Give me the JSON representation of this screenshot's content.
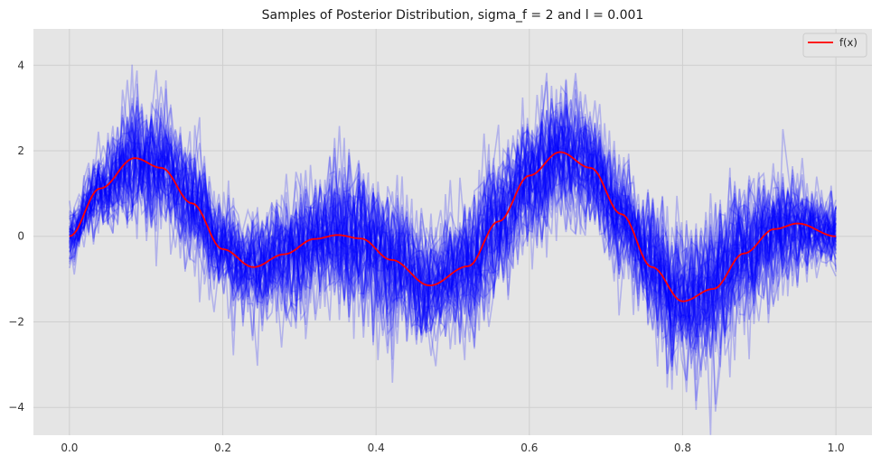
{
  "chart_data": {
    "type": "line",
    "title": "Samples of Posterior Distribution, sigma_f = 2 and l = 0.001",
    "xlabel": "",
    "ylabel": "",
    "xlim": [
      -0.047,
      1.047
    ],
    "ylim": [
      -4.65,
      4.85
    ],
    "xticks": [
      0.0,
      0.2,
      0.4,
      0.6,
      0.8,
      1.0
    ],
    "xtick_labels": [
      "0.0",
      "0.2",
      "0.4",
      "0.6",
      "0.8",
      "1.0"
    ],
    "yticks": [
      -4,
      -2,
      0,
      2,
      4
    ],
    "ytick_labels": [
      "−4",
      "−2",
      "0",
      "2",
      "4"
    ],
    "grid": true,
    "legend": {
      "position": "top-right",
      "entries": [
        "f(x)"
      ]
    },
    "colors": {
      "background": "#e5e5e5",
      "grid": "#cfcfcf",
      "samples": "#0000ff",
      "function": "#ff0000"
    },
    "function_series": {
      "name": "f(x)",
      "x": [
        0.0,
        0.04,
        0.085,
        0.12,
        0.16,
        0.2,
        0.24,
        0.28,
        0.32,
        0.35,
        0.38,
        0.42,
        0.47,
        0.52,
        0.56,
        0.6,
        0.64,
        0.68,
        0.72,
        0.76,
        0.8,
        0.84,
        0.88,
        0.92,
        0.95,
        1.0
      ],
      "values": [
        0.0,
        1.12,
        1.83,
        1.6,
        0.77,
        -0.3,
        -0.72,
        -0.42,
        -0.06,
        0.03,
        -0.05,
        -0.55,
        -1.15,
        -0.7,
        0.35,
        1.42,
        1.97,
        1.6,
        0.52,
        -0.72,
        -1.52,
        -1.23,
        -0.4,
        0.17,
        0.3,
        0.0
      ]
    },
    "samples": {
      "count": 60,
      "n_points": 160,
      "spread_envelope": {
        "x": [
          0.0,
          0.1,
          0.2,
          0.24,
          0.3,
          0.4,
          0.48,
          0.55,
          0.62,
          0.7,
          0.8,
          0.85,
          0.9,
          1.0
        ],
        "std": [
          0.3,
          0.75,
          0.6,
          0.55,
          0.7,
          0.85,
          0.65,
          0.8,
          0.75,
          0.65,
          0.8,
          0.9,
          0.7,
          0.4
        ]
      },
      "opacity": 0.22
    }
  }
}
